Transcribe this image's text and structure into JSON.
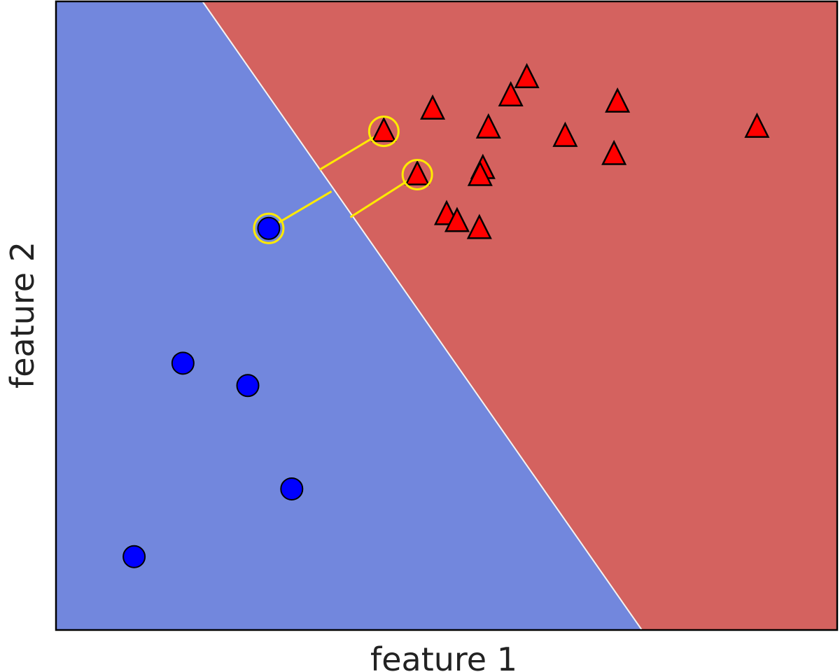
{
  "chart_data": {
    "type": "scatter",
    "title": "",
    "xlabel": "feature 1",
    "ylabel": "feature 2",
    "xlim": [
      0,
      11.2
    ],
    "ylim": [
      0,
      9
    ],
    "grid": false,
    "legend": "none",
    "ticks": "none",
    "regions": [
      {
        "class": "blue-circle-class",
        "color": "#7287dd",
        "side": "left"
      },
      {
        "class": "red-triangle-class",
        "color": "#d4625f",
        "side": "right"
      }
    ],
    "decision_boundary": {
      "points": [
        [
          2.1,
          9.0
        ],
        [
          8.4,
          0.0
        ]
      ],
      "color": "#f4f4f4"
    },
    "series": [
      {
        "marker": "circle",
        "color": "#0000ff",
        "edge_color": "#000000",
        "x": [
          3.05,
          1.82,
          2.75,
          3.38,
          1.12
        ],
        "y": [
          5.75,
          3.82,
          3.5,
          2.02,
          1.05
        ]
      },
      {
        "marker": "triangle",
        "color": "#ff0000",
        "edge_color": "#000000",
        "x": [
          6.75,
          6.52,
          5.4,
          6.2,
          8.05,
          10.05,
          7.3,
          8.0,
          6.12,
          6.08,
          5.6,
          5.75,
          6.07,
          4.7,
          5.18
        ],
        "y": [
          7.91,
          7.65,
          7.46,
          7.19,
          7.56,
          7.2,
          7.07,
          6.81,
          6.61,
          6.51,
          5.95,
          5.85,
          5.75,
          7.14,
          6.52
        ]
      }
    ],
    "support_vectors": {
      "circle_color": "#ffea00",
      "x": [
        3.05,
        4.7,
        5.18
      ],
      "y": [
        5.75,
        7.14,
        6.52
      ]
    },
    "margin_lines": {
      "color": "#ffea00",
      "segments": [
        [
          [
            3.05,
            5.75
          ],
          [
            3.95,
            6.28
          ]
        ],
        [
          [
            4.7,
            7.14
          ],
          [
            3.78,
            6.59
          ]
        ],
        [
          [
            5.18,
            6.52
          ],
          [
            4.22,
            5.91
          ]
        ]
      ]
    }
  }
}
